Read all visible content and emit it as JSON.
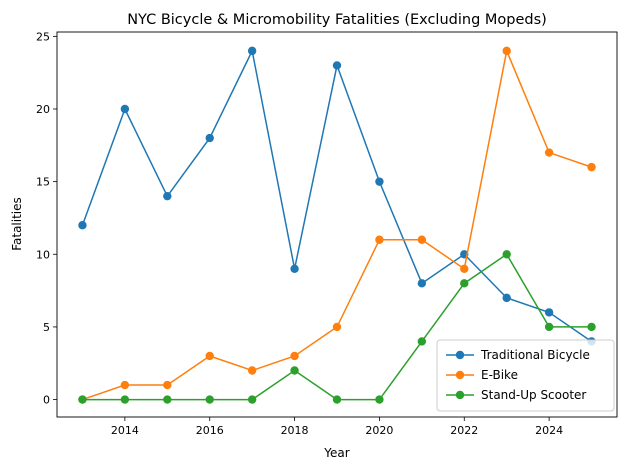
{
  "chart_data": {
    "type": "line",
    "title": "NYC Bicycle & Micromobility Fatalities (Excluding Mopeds)",
    "xlabel": "Year",
    "ylabel": "Fatalities",
    "x": [
      2013,
      2014,
      2015,
      2016,
      2017,
      2018,
      2019,
      2020,
      2021,
      2022,
      2023,
      2024,
      2025
    ],
    "xlim": [
      2012.4,
      2025.6
    ],
    "ylim": [
      -1.2,
      25.3
    ],
    "xticks": [
      "2014",
      "2016",
      "2018",
      "2020",
      "2022",
      "2024"
    ],
    "yticks": [
      "0",
      "5",
      "10",
      "15",
      "20",
      "25"
    ],
    "grid": false,
    "legend_position": "lower-right",
    "series": [
      {
        "name": "Traditional Bicycle",
        "color": "#1f77b4",
        "values": [
          12,
          20,
          14,
          18,
          24,
          9,
          23,
          15,
          8,
          10,
          7,
          6,
          4
        ]
      },
      {
        "name": "E-Bike",
        "color": "#ff7f0e",
        "values": [
          0,
          1,
          1,
          3,
          2,
          3,
          5,
          11,
          11,
          9,
          24,
          17,
          16
        ]
      },
      {
        "name": "Stand-Up Scooter",
        "color": "#2ca02c",
        "values": [
          0,
          0,
          0,
          0,
          0,
          2,
          0,
          0,
          4,
          8,
          10,
          5,
          5
        ]
      }
    ]
  }
}
